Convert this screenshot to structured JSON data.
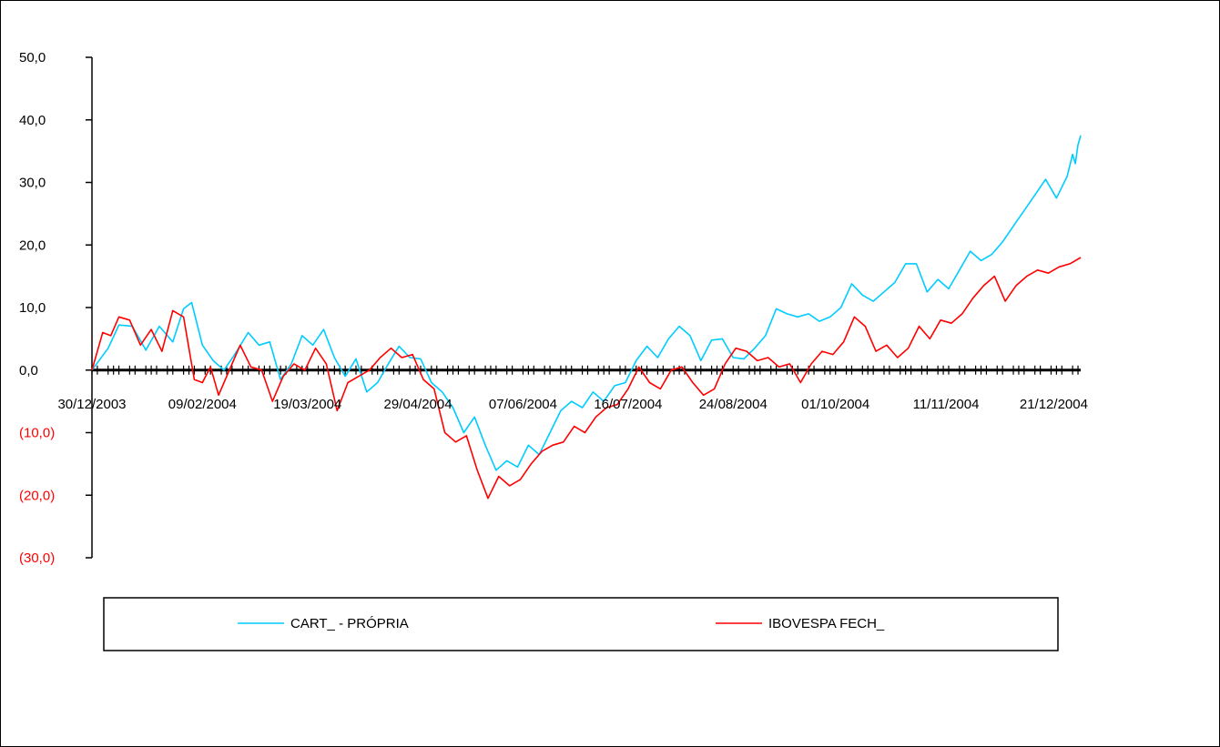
{
  "chart_data": {
    "type": "line",
    "title": "",
    "xlabel": "",
    "ylabel": "",
    "ylim": [
      -30,
      50
    ],
    "y_ticks": [
      {
        "value": 50,
        "label": "50,0"
      },
      {
        "value": 40,
        "label": "40,0"
      },
      {
        "value": 30,
        "label": "30,0"
      },
      {
        "value": 20,
        "label": "20,0"
      },
      {
        "value": 10,
        "label": "10,0"
      },
      {
        "value": 0,
        "label": "0,0"
      },
      {
        "value": -10,
        "label": "(10,0)"
      },
      {
        "value": -20,
        "label": "(20,0)"
      },
      {
        "value": -30,
        "label": "(30,0)"
      }
    ],
    "negative_label_color": "#FF0000",
    "x_range": [
      "30/12/2003",
      "31/12/2004"
    ],
    "x_tick_labels": [
      {
        "date": "30/12/2003",
        "label": "30/12/2003"
      },
      {
        "date": "09/02/2004",
        "label": "09/02/2004"
      },
      {
        "date": "19/03/2004",
        "label": "19/03/2004"
      },
      {
        "date": "29/04/2004",
        "label": "29/04/2004"
      },
      {
        "date": "07/06/2004",
        "label": "07/06/2004"
      },
      {
        "date": "16/07/2004",
        "label": "16/07/2004"
      },
      {
        "date": "24/08/2004",
        "label": "24/08/2004"
      },
      {
        "date": "01/10/2004",
        "label": "01/10/2004"
      },
      {
        "date": "11/11/2004",
        "label": "11/11/2004"
      },
      {
        "date": "21/12/2004",
        "label": "21/12/2004"
      }
    ],
    "legend_position": "bottom",
    "series": [
      {
        "name": "CART_ - PRÓPRIA",
        "color": "#00CCFF",
        "points": [
          [
            "30/12/2003",
            0.0
          ],
          [
            "05/01/2004",
            3.5
          ],
          [
            "09/01/2004",
            7.2
          ],
          [
            "14/01/2004",
            7.0
          ],
          [
            "19/01/2004",
            3.2
          ],
          [
            "24/01/2004",
            7.0
          ],
          [
            "29/01/2004",
            4.5
          ],
          [
            "02/02/2004",
            9.8
          ],
          [
            "05/02/2004",
            10.8
          ],
          [
            "09/02/2004",
            4.0
          ],
          [
            "13/02/2004",
            1.5
          ],
          [
            "17/02/2004",
            0.0
          ],
          [
            "21/02/2004",
            2.5
          ],
          [
            "26/02/2004",
            6.0
          ],
          [
            "01/03/2004",
            4.0
          ],
          [
            "05/03/2004",
            4.5
          ],
          [
            "09/03/2004",
            -1.5
          ],
          [
            "13/03/2004",
            1.0
          ],
          [
            "17/03/2004",
            5.5
          ],
          [
            "21/03/2004",
            4.0
          ],
          [
            "25/03/2004",
            6.5
          ],
          [
            "29/03/2004",
            2.0
          ],
          [
            "02/04/2004",
            -1.0
          ],
          [
            "06/04/2004",
            1.8
          ],
          [
            "10/04/2004",
            -3.5
          ],
          [
            "14/04/2004",
            -2.0
          ],
          [
            "18/04/2004",
            1.0
          ],
          [
            "22/04/2004",
            3.8
          ],
          [
            "26/04/2004",
            2.0
          ],
          [
            "30/04/2004",
            1.8
          ],
          [
            "04/05/2004",
            -2.0
          ],
          [
            "08/05/2004",
            -3.5
          ],
          [
            "12/05/2004",
            -6.0
          ],
          [
            "16/05/2004",
            -10.0
          ],
          [
            "20/05/2004",
            -7.5
          ],
          [
            "24/05/2004",
            -12.0
          ],
          [
            "28/05/2004",
            -16.0
          ],
          [
            "01/06/2004",
            -14.5
          ],
          [
            "05/06/2004",
            -15.5
          ],
          [
            "09/06/2004",
            -12.0
          ],
          [
            "13/06/2004",
            -13.5
          ],
          [
            "17/06/2004",
            -10.0
          ],
          [
            "21/06/2004",
            -6.5
          ],
          [
            "25/06/2004",
            -5.0
          ],
          [
            "29/06/2004",
            -6.0
          ],
          [
            "03/07/2004",
            -3.5
          ],
          [
            "07/07/2004",
            -5.0
          ],
          [
            "11/07/2004",
            -2.5
          ],
          [
            "15/07/2004",
            -2.0
          ],
          [
            "19/07/2004",
            1.5
          ],
          [
            "23/07/2004",
            3.8
          ],
          [
            "27/07/2004",
            2.0
          ],
          [
            "31/07/2004",
            5.0
          ],
          [
            "04/08/2004",
            7.0
          ],
          [
            "08/08/2004",
            5.5
          ],
          [
            "12/08/2004",
            1.5
          ],
          [
            "16/08/2004",
            4.8
          ],
          [
            "20/08/2004",
            5.0
          ],
          [
            "24/08/2004",
            2.0
          ],
          [
            "28/08/2004",
            1.8
          ],
          [
            "01/09/2004",
            3.5
          ],
          [
            "05/09/2004",
            5.5
          ],
          [
            "09/09/2004",
            9.8
          ],
          [
            "13/09/2004",
            9.0
          ],
          [
            "17/09/2004",
            8.5
          ],
          [
            "21/09/2004",
            9.0
          ],
          [
            "25/09/2004",
            7.8
          ],
          [
            "29/09/2004",
            8.5
          ],
          [
            "03/10/2004",
            10.0
          ],
          [
            "07/10/2004",
            13.8
          ],
          [
            "11/10/2004",
            12.0
          ],
          [
            "15/10/2004",
            11.0
          ],
          [
            "19/10/2004",
            12.5
          ],
          [
            "23/10/2004",
            14.0
          ],
          [
            "27/10/2004",
            17.0
          ],
          [
            "31/10/2004",
            17.0
          ],
          [
            "04/11/2004",
            12.5
          ],
          [
            "08/11/2004",
            14.5
          ],
          [
            "12/11/2004",
            13.0
          ],
          [
            "16/11/2004",
            16.0
          ],
          [
            "20/11/2004",
            19.0
          ],
          [
            "24/11/2004",
            17.5
          ],
          [
            "28/11/2004",
            18.5
          ],
          [
            "02/12/2004",
            20.5
          ],
          [
            "06/12/2004",
            23.0
          ],
          [
            "10/12/2004",
            25.5
          ],
          [
            "14/12/2004",
            28.0
          ],
          [
            "18/12/2004",
            30.5
          ],
          [
            "22/12/2004",
            27.5
          ],
          [
            "26/12/2004",
            31.0
          ],
          [
            "28/12/2004",
            34.5
          ],
          [
            "29/12/2004",
            33.0
          ],
          [
            "30/12/2004",
            36.0
          ],
          [
            "31/12/2004",
            37.5
          ]
        ]
      },
      {
        "name": "IBOVESPA FECH_",
        "color": "#FF0000",
        "points": [
          [
            "30/12/2003",
            0.0
          ],
          [
            "03/01/2004",
            6.0
          ],
          [
            "06/01/2004",
            5.5
          ],
          [
            "09/01/2004",
            8.5
          ],
          [
            "13/01/2004",
            8.0
          ],
          [
            "17/01/2004",
            4.0
          ],
          [
            "21/01/2004",
            6.5
          ],
          [
            "25/01/2004",
            3.0
          ],
          [
            "29/01/2004",
            9.5
          ],
          [
            "02/02/2004",
            8.5
          ],
          [
            "06/02/2004",
            -1.5
          ],
          [
            "09/02/2004",
            -2.0
          ],
          [
            "12/02/2004",
            0.5
          ],
          [
            "15/02/2004",
            -4.0
          ],
          [
            "19/02/2004",
            0.0
          ],
          [
            "23/02/2004",
            4.0
          ],
          [
            "27/02/2004",
            0.5
          ],
          [
            "02/03/2004",
            0.0
          ],
          [
            "06/03/2004",
            -5.0
          ],
          [
            "10/03/2004",
            -1.0
          ],
          [
            "14/03/2004",
            1.0
          ],
          [
            "18/03/2004",
            0.0
          ],
          [
            "22/03/2004",
            3.5
          ],
          [
            "26/03/2004",
            1.0
          ],
          [
            "30/03/2004",
            -6.5
          ],
          [
            "03/04/2004",
            -2.0
          ],
          [
            "07/04/2004",
            -1.0
          ],
          [
            "11/04/2004",
            0.0
          ],
          [
            "15/04/2004",
            2.0
          ],
          [
            "19/04/2004",
            3.5
          ],
          [
            "23/04/2004",
            2.0
          ],
          [
            "27/04/2004",
            2.5
          ],
          [
            "01/05/2004",
            -1.5
          ],
          [
            "05/05/2004",
            -3.0
          ],
          [
            "09/05/2004",
            -10.0
          ],
          [
            "13/05/2004",
            -11.5
          ],
          [
            "17/05/2004",
            -10.5
          ],
          [
            "21/05/2004",
            -16.0
          ],
          [
            "25/05/2004",
            -20.5
          ],
          [
            "29/05/2004",
            -17.0
          ],
          [
            "02/06/2004",
            -18.5
          ],
          [
            "06/06/2004",
            -17.5
          ],
          [
            "10/06/2004",
            -15.0
          ],
          [
            "14/06/2004",
            -13.0
          ],
          [
            "18/06/2004",
            -12.0
          ],
          [
            "22/06/2004",
            -11.5
          ],
          [
            "26/06/2004",
            -9.0
          ],
          [
            "30/06/2004",
            -10.0
          ],
          [
            "04/07/2004",
            -7.5
          ],
          [
            "08/07/2004",
            -6.0
          ],
          [
            "12/07/2004",
            -5.5
          ],
          [
            "16/07/2004",
            -3.0
          ],
          [
            "20/07/2004",
            0.5
          ],
          [
            "24/07/2004",
            -2.0
          ],
          [
            "28/07/2004",
            -3.0
          ],
          [
            "01/08/2004",
            0.0
          ],
          [
            "05/08/2004",
            0.5
          ],
          [
            "09/08/2004",
            -2.0
          ],
          [
            "13/08/2004",
            -4.0
          ],
          [
            "17/08/2004",
            -3.0
          ],
          [
            "21/08/2004",
            1.0
          ],
          [
            "25/08/2004",
            3.5
          ],
          [
            "29/08/2004",
            3.0
          ],
          [
            "02/09/2004",
            1.5
          ],
          [
            "06/09/2004",
            2.0
          ],
          [
            "10/09/2004",
            0.5
          ],
          [
            "14/09/2004",
            1.0
          ],
          [
            "18/09/2004",
            -2.0
          ],
          [
            "22/09/2004",
            1.0
          ],
          [
            "26/09/2004",
            3.0
          ],
          [
            "30/09/2004",
            2.5
          ],
          [
            "04/10/2004",
            4.5
          ],
          [
            "08/10/2004",
            8.5
          ],
          [
            "12/10/2004",
            7.0
          ],
          [
            "16/10/2004",
            3.0
          ],
          [
            "20/10/2004",
            4.0
          ],
          [
            "24/10/2004",
            2.0
          ],
          [
            "28/10/2004",
            3.5
          ],
          [
            "01/11/2004",
            7.0
          ],
          [
            "05/11/2004",
            5.0
          ],
          [
            "09/11/2004",
            8.0
          ],
          [
            "13/11/2004",
            7.5
          ],
          [
            "17/11/2004",
            9.0
          ],
          [
            "21/11/2004",
            11.5
          ],
          [
            "25/11/2004",
            13.5
          ],
          [
            "29/11/2004",
            15.0
          ],
          [
            "03/12/2004",
            11.0
          ],
          [
            "07/12/2004",
            13.5
          ],
          [
            "11/12/2004",
            15.0
          ],
          [
            "15/12/2004",
            16.0
          ],
          [
            "19/12/2004",
            15.5
          ],
          [
            "23/12/2004",
            16.5
          ],
          [
            "27/12/2004",
            17.0
          ],
          [
            "31/12/2004",
            18.0
          ]
        ]
      }
    ]
  }
}
